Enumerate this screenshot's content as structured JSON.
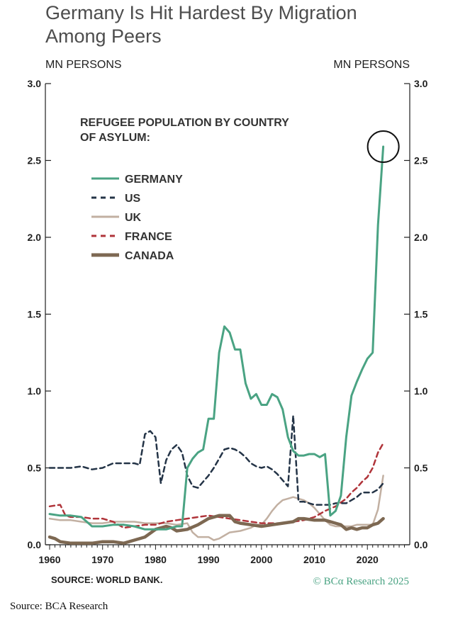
{
  "title_line1": "Germany Is Hit Hardest By Migration",
  "title_line2": "Among Peers",
  "source_inner": "SOURCE: WORLD BANK.",
  "copyright": "© BCα Research 2025",
  "source_bottom": "Source: BCA Research",
  "colors": {
    "germany": "#4aa383",
    "us": "#243447",
    "uk": "#c2b0a2",
    "france": "#b0343a",
    "canada": "#7d6852",
    "axis": "#1f1f1f",
    "title": "#4d4d4d",
    "copyright": "#4aa383"
  },
  "chart_data": {
    "type": "line",
    "ylabel_left": "MN PERSONS",
    "ylabel_right": "MN PERSONS",
    "legend_title": "REFUGEE POPULATION BY COUNTRY OF ASYLUM:",
    "legend_title_lines": [
      "REFUGEE POPULATION BY COUNTRY",
      "OF ASYLUM:"
    ],
    "legend_position": "upper-left",
    "ylim": [
      0,
      3.0
    ],
    "xlim": [
      1960,
      2028
    ],
    "y_ticks": [
      "0.0",
      "0.5",
      "1.0",
      "1.5",
      "2.0",
      "2.5",
      "3.0"
    ],
    "x_ticks": [
      "1960",
      "1970",
      "1980",
      "1990",
      "2000",
      "2010",
      "2020"
    ],
    "annotation": "circle highlighting Germany 2023 peak",
    "series": [
      {
        "name": "GERMANY",
        "style": "solid",
        "points": [
          [
            1960,
            0.2
          ],
          [
            1962,
            0.19
          ],
          [
            1964,
            0.19
          ],
          [
            1966,
            0.18
          ],
          [
            1968,
            0.12
          ],
          [
            1970,
            0.12
          ],
          [
            1972,
            0.13
          ],
          [
            1974,
            0.13
          ],
          [
            1976,
            0.12
          ],
          [
            1978,
            0.1
          ],
          [
            1980,
            0.1
          ],
          [
            1982,
            0.1
          ],
          [
            1984,
            0.12
          ],
          [
            1985,
            0.12
          ],
          [
            1986,
            0.5
          ],
          [
            1987,
            0.56
          ],
          [
            1988,
            0.6
          ],
          [
            1989,
            0.62
          ],
          [
            1990,
            0.82
          ],
          [
            1991,
            0.82
          ],
          [
            1992,
            1.25
          ],
          [
            1993,
            1.42
          ],
          [
            1994,
            1.38
          ],
          [
            1995,
            1.27
          ],
          [
            1996,
            1.27
          ],
          [
            1997,
            1.05
          ],
          [
            1998,
            0.95
          ],
          [
            1999,
            0.98
          ],
          [
            2000,
            0.91
          ],
          [
            2001,
            0.91
          ],
          [
            2002,
            0.98
          ],
          [
            2003,
            0.96
          ],
          [
            2004,
            0.88
          ],
          [
            2005,
            0.7
          ],
          [
            2006,
            0.61
          ],
          [
            2007,
            0.58
          ],
          [
            2008,
            0.58
          ],
          [
            2009,
            0.59
          ],
          [
            2010,
            0.59
          ],
          [
            2011,
            0.57
          ],
          [
            2012,
            0.59
          ],
          [
            2013,
            0.19
          ],
          [
            2014,
            0.22
          ],
          [
            2015,
            0.32
          ],
          [
            2016,
            0.7
          ],
          [
            2017,
            0.97
          ],
          [
            2018,
            1.06
          ],
          [
            2019,
            1.14
          ],
          [
            2020,
            1.21
          ],
          [
            2021,
            1.25
          ],
          [
            2022,
            2.08
          ],
          [
            2023,
            2.59
          ]
        ]
      },
      {
        "name": "US",
        "style": "dashed",
        "points": [
          [
            1960,
            0.5
          ],
          [
            1962,
            0.5
          ],
          [
            1964,
            0.5
          ],
          [
            1966,
            0.51
          ],
          [
            1968,
            0.49
          ],
          [
            1970,
            0.5
          ],
          [
            1972,
            0.53
          ],
          [
            1974,
            0.53
          ],
          [
            1976,
            0.53
          ],
          [
            1977,
            0.52
          ],
          [
            1978,
            0.72
          ],
          [
            1979,
            0.74
          ],
          [
            1980,
            0.7
          ],
          [
            1981,
            0.4
          ],
          [
            1982,
            0.55
          ],
          [
            1983,
            0.62
          ],
          [
            1984,
            0.65
          ],
          [
            1985,
            0.6
          ],
          [
            1986,
            0.45
          ],
          [
            1987,
            0.38
          ],
          [
            1988,
            0.37
          ],
          [
            1989,
            0.41
          ],
          [
            1990,
            0.45
          ],
          [
            1991,
            0.5
          ],
          [
            1992,
            0.56
          ],
          [
            1993,
            0.62
          ],
          [
            1994,
            0.63
          ],
          [
            1995,
            0.62
          ],
          [
            1996,
            0.6
          ],
          [
            1997,
            0.57
          ],
          [
            1998,
            0.53
          ],
          [
            1999,
            0.51
          ],
          [
            2000,
            0.5
          ],
          [
            2001,
            0.51
          ],
          [
            2002,
            0.49
          ],
          [
            2003,
            0.46
          ],
          [
            2004,
            0.42
          ],
          [
            2005,
            0.38
          ],
          [
            2006,
            0.84
          ],
          [
            2007,
            0.28
          ],
          [
            2008,
            0.28
          ],
          [
            2009,
            0.27
          ],
          [
            2010,
            0.26
          ],
          [
            2011,
            0.26
          ],
          [
            2012,
            0.26
          ],
          [
            2013,
            0.26
          ],
          [
            2014,
            0.27
          ],
          [
            2015,
            0.27
          ],
          [
            2016,
            0.27
          ],
          [
            2017,
            0.29
          ],
          [
            2018,
            0.31
          ],
          [
            2019,
            0.34
          ],
          [
            2020,
            0.34
          ],
          [
            2021,
            0.34
          ],
          [
            2022,
            0.36
          ],
          [
            2023,
            0.4
          ]
        ]
      },
      {
        "name": "UK",
        "style": "solid",
        "points": [
          [
            1960,
            0.17
          ],
          [
            1962,
            0.16
          ],
          [
            1964,
            0.16
          ],
          [
            1966,
            0.15
          ],
          [
            1968,
            0.14
          ],
          [
            1970,
            0.14
          ],
          [
            1972,
            0.15
          ],
          [
            1974,
            0.15
          ],
          [
            1976,
            0.15
          ],
          [
            1978,
            0.14
          ],
          [
            1980,
            0.14
          ],
          [
            1982,
            0.14
          ],
          [
            1984,
            0.13
          ],
          [
            1986,
            0.14
          ],
          [
            1987,
            0.08
          ],
          [
            1988,
            0.05
          ],
          [
            1990,
            0.05
          ],
          [
            1991,
            0.03
          ],
          [
            1992,
            0.04
          ],
          [
            1993,
            0.06
          ],
          [
            1994,
            0.08
          ],
          [
            1996,
            0.09
          ],
          [
            1998,
            0.11
          ],
          [
            1999,
            0.13
          ],
          [
            2000,
            0.13
          ],
          [
            2001,
            0.17
          ],
          [
            2002,
            0.22
          ],
          [
            2003,
            0.26
          ],
          [
            2004,
            0.29
          ],
          [
            2005,
            0.3
          ],
          [
            2006,
            0.31
          ],
          [
            2007,
            0.3
          ],
          [
            2008,
            0.29
          ],
          [
            2009,
            0.27
          ],
          [
            2010,
            0.24
          ],
          [
            2011,
            0.2
          ],
          [
            2012,
            0.16
          ],
          [
            2013,
            0.13
          ],
          [
            2014,
            0.12
          ],
          [
            2015,
            0.12
          ],
          [
            2016,
            0.12
          ],
          [
            2017,
            0.12
          ],
          [
            2018,
            0.13
          ],
          [
            2019,
            0.13
          ],
          [
            2020,
            0.13
          ],
          [
            2021,
            0.13
          ],
          [
            2022,
            0.23
          ],
          [
            2023,
            0.45
          ]
        ]
      },
      {
        "name": "FRANCE",
        "style": "dashed",
        "points": [
          [
            1960,
            0.25
          ],
          [
            1962,
            0.26
          ],
          [
            1963,
            0.19
          ],
          [
            1964,
            0.18
          ],
          [
            1966,
            0.18
          ],
          [
            1968,
            0.17
          ],
          [
            1970,
            0.17
          ],
          [
            1972,
            0.15
          ],
          [
            1974,
            0.11
          ],
          [
            1976,
            0.12
          ],
          [
            1978,
            0.13
          ],
          [
            1980,
            0.13
          ],
          [
            1982,
            0.15
          ],
          [
            1984,
            0.16
          ],
          [
            1986,
            0.17
          ],
          [
            1988,
            0.18
          ],
          [
            1990,
            0.19
          ],
          [
            1992,
            0.18
          ],
          [
            1994,
            0.17
          ],
          [
            1996,
            0.16
          ],
          [
            1998,
            0.15
          ],
          [
            2000,
            0.14
          ],
          [
            2002,
            0.14
          ],
          [
            2004,
            0.14
          ],
          [
            2006,
            0.15
          ],
          [
            2008,
            0.16
          ],
          [
            2010,
            0.18
          ],
          [
            2012,
            0.22
          ],
          [
            2014,
            0.25
          ],
          [
            2016,
            0.3
          ],
          [
            2017,
            0.34
          ],
          [
            2018,
            0.37
          ],
          [
            2019,
            0.41
          ],
          [
            2020,
            0.44
          ],
          [
            2021,
            0.5
          ],
          [
            2022,
            0.6
          ],
          [
            2023,
            0.66
          ]
        ]
      },
      {
        "name": "CANADA",
        "style": "solid",
        "points": [
          [
            1960,
            0.05
          ],
          [
            1961,
            0.04
          ],
          [
            1962,
            0.02
          ],
          [
            1964,
            0.01
          ],
          [
            1966,
            0.01
          ],
          [
            1968,
            0.01
          ],
          [
            1970,
            0.02
          ],
          [
            1972,
            0.02
          ],
          [
            1974,
            0.01
          ],
          [
            1976,
            0.03
          ],
          [
            1978,
            0.05
          ],
          [
            1980,
            0.1
          ],
          [
            1981,
            0.11
          ],
          [
            1982,
            0.12
          ],
          [
            1983,
            0.11
          ],
          [
            1984,
            0.09
          ],
          [
            1986,
            0.1
          ],
          [
            1988,
            0.13
          ],
          [
            1990,
            0.17
          ],
          [
            1992,
            0.19
          ],
          [
            1994,
            0.19
          ],
          [
            1995,
            0.15
          ],
          [
            1996,
            0.14
          ],
          [
            1998,
            0.13
          ],
          [
            2000,
            0.12
          ],
          [
            2002,
            0.13
          ],
          [
            2004,
            0.14
          ],
          [
            2006,
            0.15
          ],
          [
            2007,
            0.17
          ],
          [
            2008,
            0.17
          ],
          [
            2010,
            0.16
          ],
          [
            2012,
            0.16
          ],
          [
            2014,
            0.14
          ],
          [
            2015,
            0.13
          ],
          [
            2016,
            0.1
          ],
          [
            2017,
            0.11
          ],
          [
            2018,
            0.1
          ],
          [
            2019,
            0.11
          ],
          [
            2020,
            0.11
          ],
          [
            2021,
            0.13
          ],
          [
            2022,
            0.14
          ],
          [
            2023,
            0.17
          ]
        ]
      }
    ]
  }
}
